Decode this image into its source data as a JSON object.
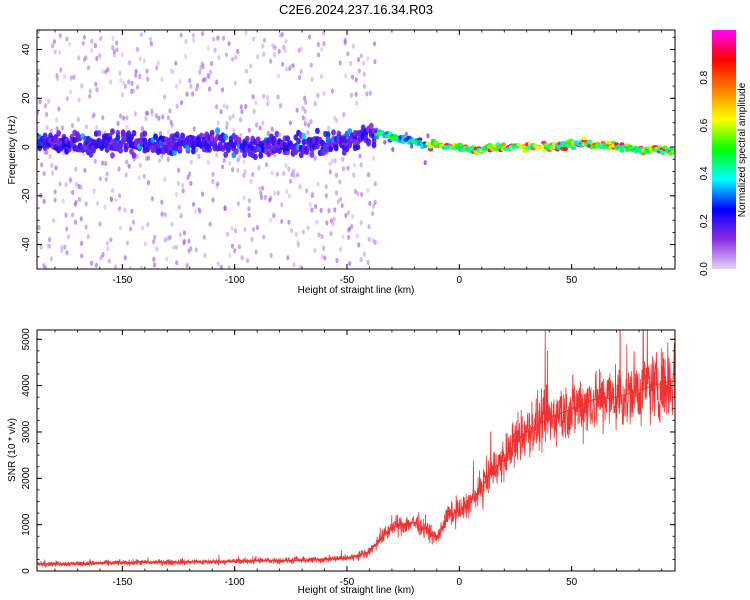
{
  "title": "C2E6.2024.237.16.34.R03",
  "chart_data": [
    {
      "type": "heatmap",
      "xlabel": "Height of straight line (km)",
      "ylabel": "Frequency (Hz)",
      "xlim": [
        -188,
        96
      ],
      "ylim": [
        -50,
        48
      ],
      "xticks": [
        -150,
        -100,
        -50,
        0,
        50
      ],
      "yticks": [
        -40,
        -20,
        0,
        20,
        40
      ],
      "xtick_labels": [
        "-150",
        "-100",
        "-50",
        "0",
        "50"
      ],
      "ytick_labels": [
        "-40",
        "-20",
        "0",
        "20",
        "40"
      ],
      "colorbar": {
        "label": "Normalized spectral amplitude",
        "range": [
          0,
          1
        ],
        "ticks": [
          0.0,
          0.2,
          0.4,
          0.6,
          0.8
        ],
        "tick_labels": [
          "0.0",
          "0.2",
          "0.4",
          "0.6",
          "0.8"
        ],
        "colormap": [
          "#e6d2f8",
          "#8a2be2",
          "#0000ff",
          "#00ffff",
          "#00ff00",
          "#ffff00",
          "#ff8000",
          "#ff0000",
          "#ff00ff"
        ]
      },
      "signal_trace": {
        "x": [
          -188,
          -170,
          -150,
          -130,
          -110,
          -90,
          -70,
          -50,
          -40,
          -35,
          -30,
          -25,
          -20,
          -15,
          -10,
          -5,
          0,
          5,
          10,
          15,
          20,
          30,
          40,
          50,
          55,
          60,
          70,
          80,
          90,
          96
        ],
        "y": [
          2,
          1,
          2,
          1,
          2,
          0,
          1,
          2,
          5,
          6,
          4,
          3,
          2,
          1,
          1,
          0,
          0,
          -1,
          -1,
          0,
          0,
          0,
          0,
          1,
          2,
          1,
          0,
          -1,
          -1,
          -2
        ]
      },
      "annotations": []
    },
    {
      "type": "line",
      "xlabel": "Height of straight line (km)",
      "ylabel": "SNR (10 * v/v)",
      "xlim": [
        -188,
        96
      ],
      "ylim": [
        0,
        5200
      ],
      "xticks": [
        -150,
        -100,
        -50,
        0,
        50
      ],
      "yticks": [
        0,
        1000,
        2000,
        3000,
        4000,
        5000
      ],
      "xtick_labels": [
        "-150",
        "-100",
        "-50",
        "0",
        "50"
      ],
      "ytick_labels": [
        "0",
        "1000",
        "2000",
        "3000",
        "4000",
        "5000"
      ],
      "color": "#ee3333",
      "series": [
        {
          "x": [
            -188,
            -170,
            -150,
            -130,
            -110,
            -90,
            -70,
            -60,
            -50,
            -45,
            -40,
            -35,
            -30,
            -25,
            -20,
            -15,
            -10,
            -5,
            0,
            5,
            10,
            15,
            20,
            25,
            30,
            40,
            50,
            60,
            70,
            80,
            90,
            96
          ],
          "values": [
            150,
            160,
            180,
            190,
            200,
            220,
            230,
            250,
            280,
            330,
            420,
            700,
            950,
            1000,
            1050,
            900,
            700,
            1200,
            1300,
            1500,
            1800,
            2200,
            2400,
            2800,
            3000,
            3300,
            3500,
            3700,
            3750,
            3900,
            4050,
            4100
          ]
        }
      ]
    }
  ]
}
